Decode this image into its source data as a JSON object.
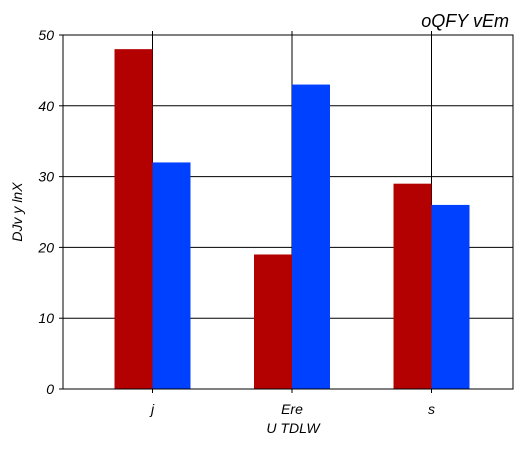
{
  "chart_data": {
    "type": "bar",
    "title": "oQFY vEm",
    "xlabel": "U TDLW",
    "ylabel": "DJv y  lnX",
    "categories": [
      "j",
      "Ere",
      "s"
    ],
    "series": [
      {
        "color": "#b30000",
        "values": [
          48,
          19,
          29
        ]
      },
      {
        "color": "#0041ff",
        "values": [
          32,
          43,
          26
        ]
      }
    ],
    "ylim": [
      0,
      50
    ],
    "yticks": [
      0,
      10,
      20,
      30,
      40,
      50
    ],
    "grid": true
  }
}
